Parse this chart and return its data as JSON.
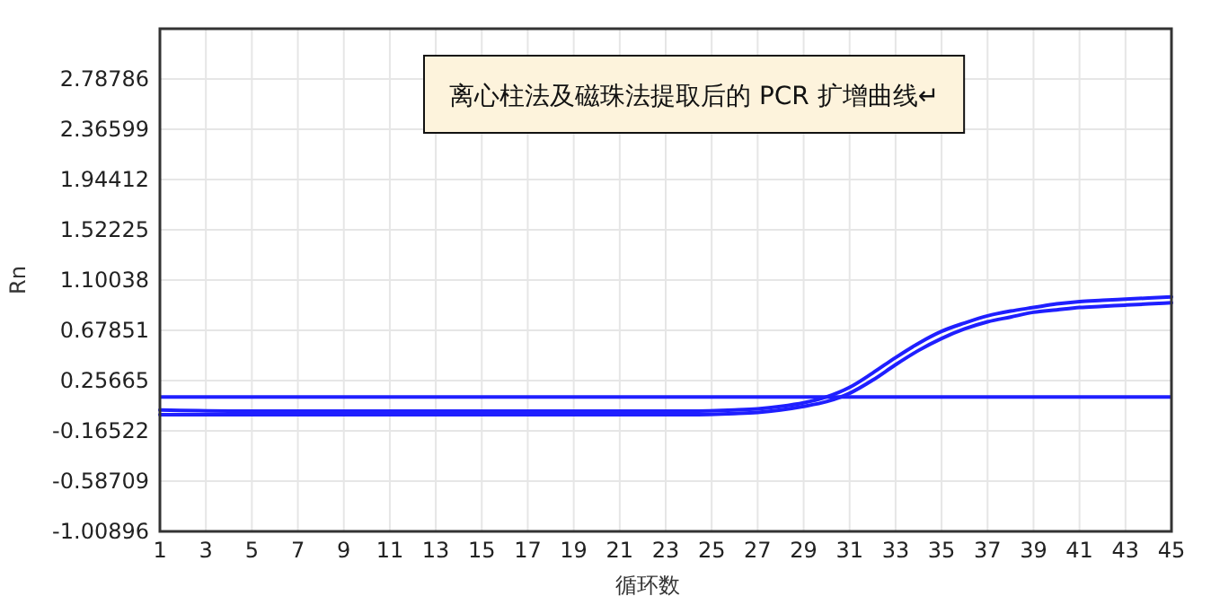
{
  "chart_data": {
    "type": "line",
    "title": "离心柱法及磁珠法提取后的 PCR 扩增曲线↵",
    "xlabel": "循环数",
    "ylabel": "Rn",
    "xlim": [
      1,
      45
    ],
    "xticks": [
      1,
      3,
      5,
      7,
      9,
      11,
      13,
      15,
      17,
      19,
      21,
      23,
      25,
      27,
      29,
      31,
      33,
      35,
      37,
      39,
      41,
      43,
      45
    ],
    "ylim": [
      -1.00896,
      3.20973
    ],
    "yticks": [
      2.78786,
      2.36599,
      1.94412,
      1.52225,
      1.10038,
      0.67851,
      0.25665,
      -0.16522,
      -0.58709,
      -1.00896
    ],
    "grid": true,
    "line_style": "solid",
    "marker": "none",
    "ref_lines": [
      {
        "axis": "y",
        "value": 0.12,
        "color": "#1f1fff"
      }
    ],
    "series": [
      {
        "color": "#1f1fff",
        "x": [
          1,
          5,
          10,
          15,
          20,
          24,
          26,
          27,
          28,
          29,
          30,
          31,
          32,
          33,
          34,
          35,
          36,
          37,
          38,
          39,
          40,
          41,
          42,
          43,
          44,
          45
        ],
        "values": [
          0.01,
          0.0,
          0.0,
          0.0,
          0.0,
          0.0,
          0.01,
          0.02,
          0.04,
          0.07,
          0.12,
          0.2,
          0.32,
          0.45,
          0.57,
          0.67,
          0.74,
          0.8,
          0.84,
          0.87,
          0.9,
          0.92,
          0.93,
          0.94,
          0.95,
          0.96
        ]
      },
      {
        "color": "#1f1fff",
        "x": [
          1,
          5,
          10,
          15,
          20,
          24,
          26,
          27,
          28,
          29,
          30,
          31,
          32,
          33,
          34,
          35,
          36,
          37,
          38,
          39,
          40,
          41,
          42,
          43,
          44,
          45
        ],
        "values": [
          -0.03,
          -0.03,
          -0.03,
          -0.03,
          -0.03,
          -0.03,
          -0.02,
          -0.01,
          0.01,
          0.04,
          0.08,
          0.15,
          0.26,
          0.39,
          0.51,
          0.61,
          0.69,
          0.75,
          0.79,
          0.83,
          0.85,
          0.87,
          0.88,
          0.89,
          0.9,
          0.91
        ]
      }
    ]
  }
}
